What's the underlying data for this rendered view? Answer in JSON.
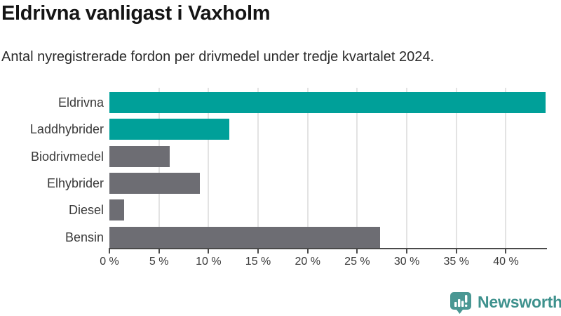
{
  "header": {
    "title": "Eldrivna vanligast i Vaxholm",
    "subtitle": "Antal nyregistrerade fordon per drivmedel under tredje kvartalet 2024."
  },
  "chart_data": {
    "type": "bar",
    "orientation": "horizontal",
    "title": "Eldrivna vanligast i Vaxholm",
    "subtitle": "Antal nyregistrerade fordon per drivmedel under tredje kvartalet 2024.",
    "categories": [
      "Eldrivna",
      "Laddhybrider",
      "Biodrivmedel",
      "Elhybrider",
      "Diesel",
      "Bensin"
    ],
    "values": [
      44.0,
      12.1,
      6.1,
      9.1,
      1.5,
      27.3
    ],
    "unit": "%",
    "xlim": [
      0,
      44
    ],
    "x_ticks": [
      0,
      5,
      10,
      15,
      20,
      25,
      30,
      35,
      40
    ],
    "x_tick_labels": [
      "0 %",
      "5 %",
      "10 %",
      "15 %",
      "20 %",
      "25 %",
      "30 %",
      "35 %",
      "40 %"
    ],
    "bar_color_keys": [
      "teal",
      "teal",
      "gray",
      "gray",
      "gray",
      "gray"
    ],
    "grid": "vertical",
    "legend": "none",
    "xlabel": "",
    "ylabel": ""
  },
  "palette": {
    "teal": "#00a099",
    "gray": "#6d6d73",
    "gridline": "#e3e3e3",
    "axis": "#4a4a4a",
    "title_text": "#151515",
    "subtitle_text": "#2a2a2a",
    "label_text": "#3a3a3a",
    "brand_teal": "#3e918d"
  },
  "footer": {
    "brand": "Newsworthy"
  }
}
